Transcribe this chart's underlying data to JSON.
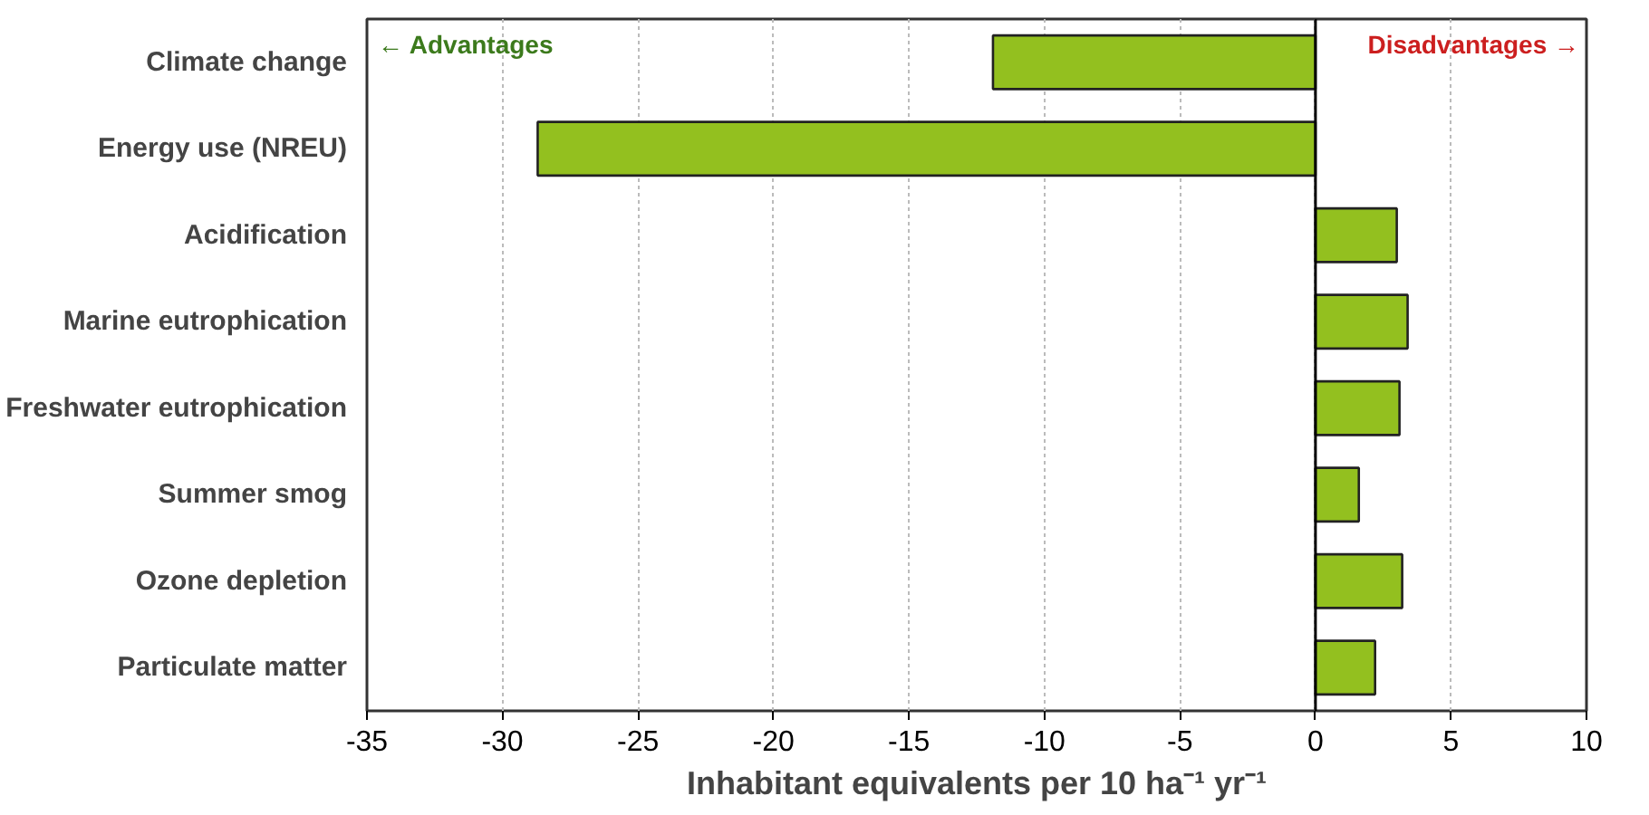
{
  "chart_data": {
    "type": "bar",
    "orientation": "horizontal",
    "xlabel": "Inhabitant equivalents per 10 ha⁻¹ yr⁻¹",
    "categories": [
      "Climate change",
      "Energy use (NREU)",
      "Acidification",
      "Marine eutrophication",
      "Freshwater eutrophication",
      "Summer smog",
      "Ozone depletion",
      "Particulate matter"
    ],
    "values": [
      -11.9,
      -28.7,
      3.0,
      3.4,
      3.1,
      1.6,
      3.2,
      2.2
    ],
    "color": "#93c01f",
    "xlim": [
      -35,
      10
    ],
    "xticks": [
      -35,
      -30,
      -25,
      -20,
      -15,
      -10,
      -5,
      0,
      5,
      10
    ],
    "grid": "x",
    "ref_lines": [
      {
        "axis": "x",
        "value": 0,
        "color": "#000000"
      }
    ],
    "annotations": [
      "← Advantages",
      "Disadvantages →"
    ]
  }
}
